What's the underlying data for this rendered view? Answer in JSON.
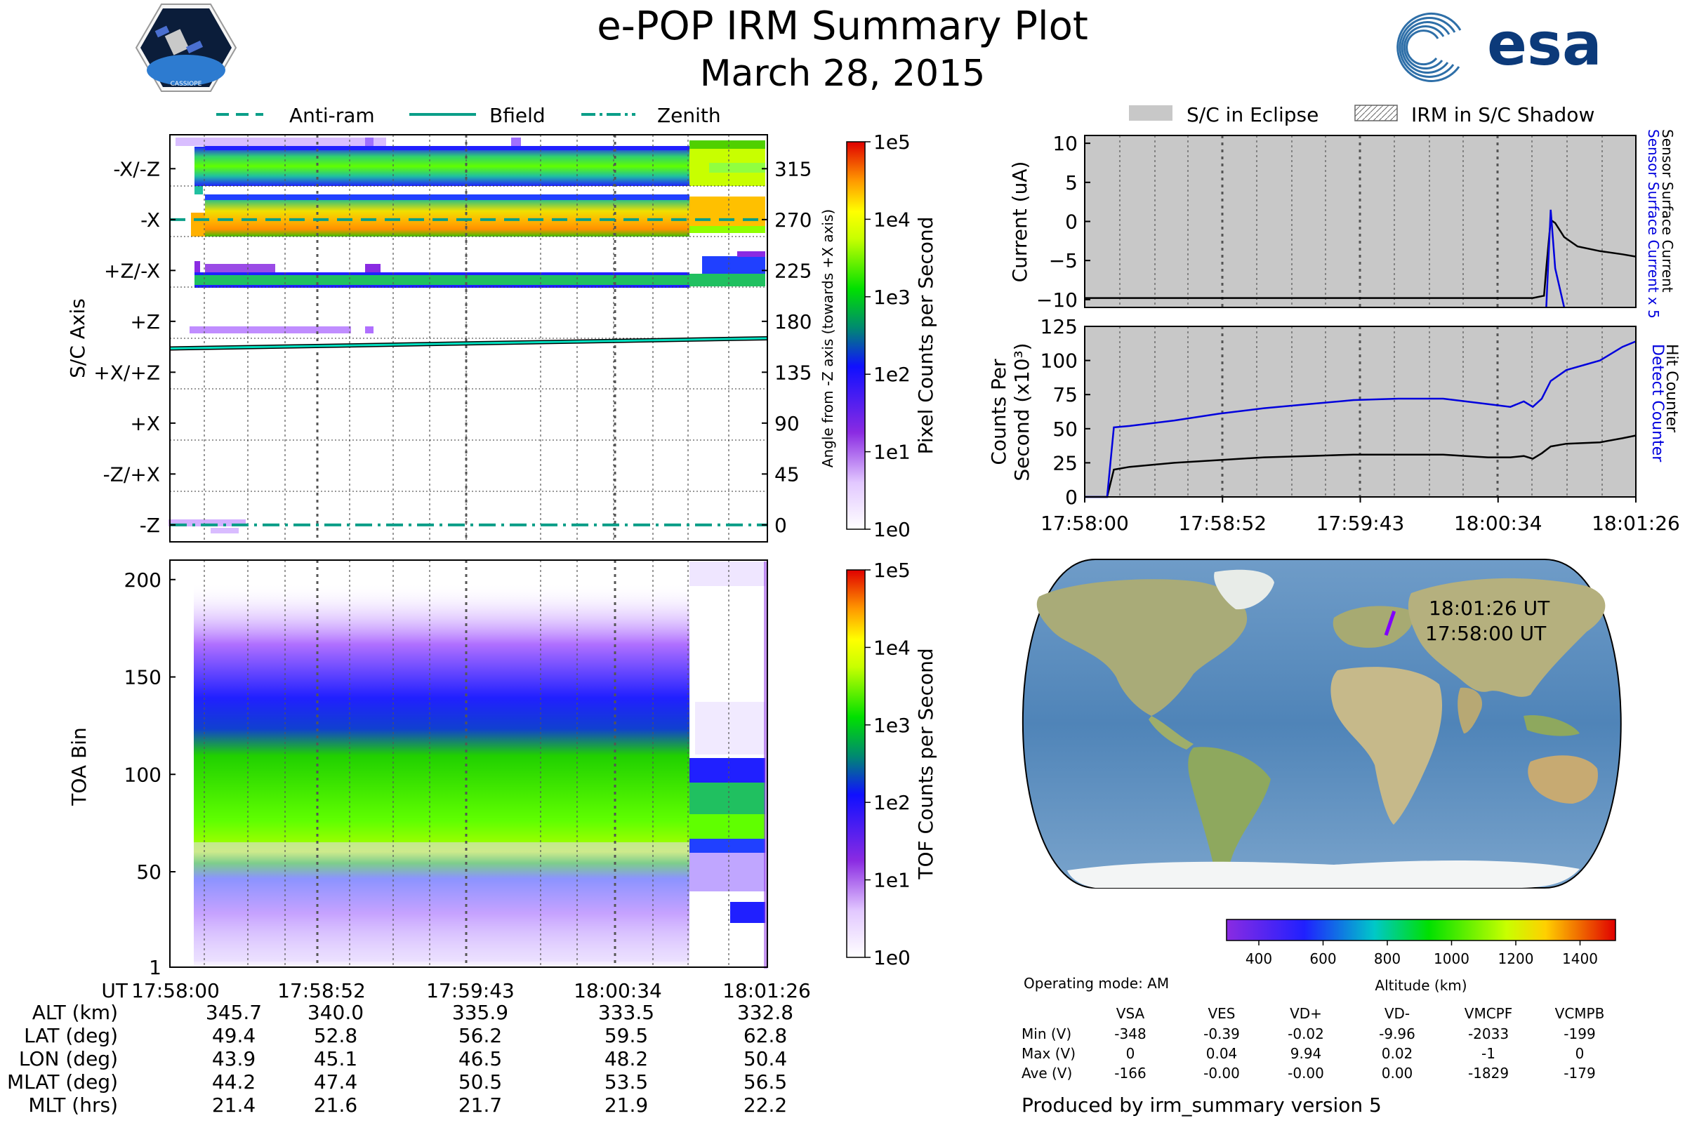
{
  "title": "e-POP IRM Summary Plot",
  "date": "March 28, 2015",
  "logos": {
    "left": "CASSIOPE",
    "right": "esa"
  },
  "colors": {
    "bfield": "#00e0c0",
    "eclipse": "#c8c8c8",
    "sensor_blue": "#0000dd",
    "track": "#8000ff"
  },
  "chart_data": [
    {
      "id": "pixel",
      "type": "heatmap",
      "ylabel": "S/C Axis",
      "ylabel_right": "Angle from -Z axis (towards +X axis)",
      "y_ticks_left": [
        "-X/-Z",
        "-X",
        "+Z/-X",
        "+Z",
        "+X/+Z",
        "+X",
        "-Z/+X",
        "-Z"
      ],
      "y_ticks_right": [
        "315",
        "270",
        "225",
        "180",
        "135",
        "90",
        "45",
        "0"
      ],
      "ylim": [
        -15,
        345
      ],
      "legend": [
        "Anti-ram",
        "Bfield",
        "Zenith"
      ],
      "anti_ram_angle": 270,
      "zenith_angle": 0,
      "bfield_angle": [
        156,
        165
      ],
      "colorbar": {
        "label": "Pixel Counts per Second",
        "ticks": [
          "1e0",
          "1e1",
          "1e2",
          "1e3",
          "1e4",
          "1e5"
        ]
      }
    },
    {
      "id": "toa",
      "type": "heatmap",
      "ylabel": "TOA Bin",
      "yticks": [
        "1",
        "50",
        "100",
        "150",
        "200"
      ],
      "ylim": [
        1,
        210
      ],
      "colorbar": {
        "label": "TOF Counts per Second",
        "ticks": [
          "1e0",
          "1e1",
          "1e2",
          "1e3",
          "1e4",
          "1e5"
        ]
      }
    },
    {
      "id": "current",
      "type": "line",
      "ylabel": "Current (uA)",
      "right_label_1": "Sensor Surface Current x 5",
      "right_label_2": "Sensor Surface Current",
      "yticks": [
        "10",
        "5",
        "0",
        "−5",
        "−10"
      ],
      "ylim": [
        -11,
        11
      ],
      "legend": [
        "S/C in Eclipse",
        "IRM in S/C Shadow"
      ],
      "x": [
        0,
        60,
        120,
        180,
        200,
        205,
        206,
        208,
        210,
        214,
        220,
        230,
        240,
        246
      ],
      "sensor": [
        -9.8,
        -9.8,
        -9.8,
        -9.8,
        -9.8,
        -9.5,
        -6,
        0.2,
        -0.2,
        -2,
        -3.2,
        -3.8,
        -4.2,
        -4.5
      ],
      "sensor_x5": [
        null,
        null,
        null,
        null,
        null,
        null,
        -11,
        1.5,
        -6,
        -11,
        null,
        null,
        null,
        null
      ]
    },
    {
      "id": "counts",
      "type": "line",
      "ylabel": "Counts Per Second (x10³)",
      "right_label_1": "Detect Counter",
      "right_label_2": "Hit Counter",
      "yticks": [
        "125",
        "100",
        "75",
        "50",
        "25",
        "0"
      ],
      "ylim": [
        0,
        125
      ],
      "xticks": [
        "17:58:00",
        "17:58:52",
        "17:59:43",
        "18:00:34",
        "18:01:26"
      ],
      "x": [
        0,
        10,
        13,
        20,
        40,
        60,
        80,
        100,
        120,
        140,
        160,
        170,
        180,
        190,
        196,
        200,
        204,
        208,
        215,
        230,
        240,
        246
      ],
      "detect": [
        0,
        0,
        51,
        52,
        56,
        61,
        65,
        68,
        71,
        72,
        72,
        70,
        68,
        66,
        70,
        66,
        72,
        85,
        93,
        100,
        110,
        114
      ],
      "hit": [
        0,
        0,
        20,
        22,
        25,
        27,
        29,
        30,
        31,
        31,
        31,
        30,
        29,
        29,
        30,
        28,
        32,
        37,
        39,
        40,
        43,
        45
      ]
    },
    {
      "id": "map",
      "type": "scatter",
      "track_label_end": "18:01:26 UT",
      "track_label_start": "17:58:00 UT",
      "track": {
        "lat": [
          49.4,
          62.8
        ],
        "lon": [
          43.9,
          50.4
        ]
      },
      "colorbar": {
        "label": "Altitude (km)",
        "ticks": [
          "400",
          "600",
          "800",
          "1000",
          "1200",
          "1400"
        ]
      }
    }
  ],
  "ephemeris": {
    "headers": [
      "UT",
      "17:58:00",
      "17:58:52",
      "17:59:43",
      "18:00:34",
      "18:01:26"
    ],
    "rows": [
      [
        "ALT (km)",
        "345.7",
        "340.0",
        "335.9",
        "333.5",
        "332.8"
      ],
      [
        "LAT (deg)",
        "49.4",
        "52.8",
        "56.2",
        "59.5",
        "62.8"
      ],
      [
        "LON (deg)",
        "43.9",
        "45.1",
        "46.5",
        "48.2",
        "50.4"
      ],
      [
        "MLAT (deg)",
        "44.2",
        "47.4",
        "50.5",
        "53.5",
        "56.5"
      ],
      [
        "MLT (hrs)",
        "21.4",
        "21.6",
        "21.7",
        "21.9",
        "22.2"
      ]
    ]
  },
  "operating_mode": "Operating mode: AM",
  "voltages": {
    "headers": [
      "VSA",
      "VES",
      "VD+",
      "VD-",
      "VMCPF",
      "VCMPB"
    ],
    "rows": [
      [
        "Min (V)",
        "-348",
        "-0.39",
        "-0.02",
        "-9.96",
        "-2033",
        "-199"
      ],
      [
        "Max (V)",
        "0",
        "0.04",
        "9.94",
        "0.02",
        "-1",
        "0"
      ],
      [
        "Ave (V)",
        "-166",
        "-0.00",
        "-0.00",
        "0.00",
        "-1829",
        "-179"
      ]
    ]
  },
  "footer": "Produced by irm_summary version 5"
}
